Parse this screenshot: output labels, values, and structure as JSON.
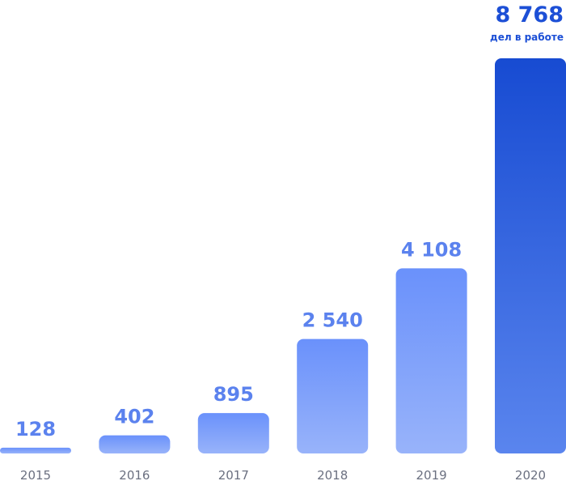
{
  "chart_data": {
    "type": "bar",
    "categories": [
      "2015",
      "2016",
      "2017",
      "2018",
      "2019",
      "2020"
    ],
    "values": [
      128,
      402,
      895,
      2540,
      4108,
      8768
    ],
    "value_labels": [
      "128",
      "402",
      "895",
      "2 540",
      "4 108",
      "8 768"
    ],
    "highlight_note": "дел в работе",
    "title": "",
    "xlabel": "",
    "ylabel": "",
    "ylim": [
      0,
      8768
    ],
    "grid": false,
    "legend": "none",
    "colors": {
      "bar_light_top": "#6A91FB",
      "bar_light_bottom": "#98B3FA",
      "bar_dark_top": "#174BD2",
      "bar_dark_bottom": "#5A85EE",
      "value_label": "#5B82EE",
      "highlight_label": "#1C4FD6",
      "tick_label": "#6B7080"
    }
  }
}
